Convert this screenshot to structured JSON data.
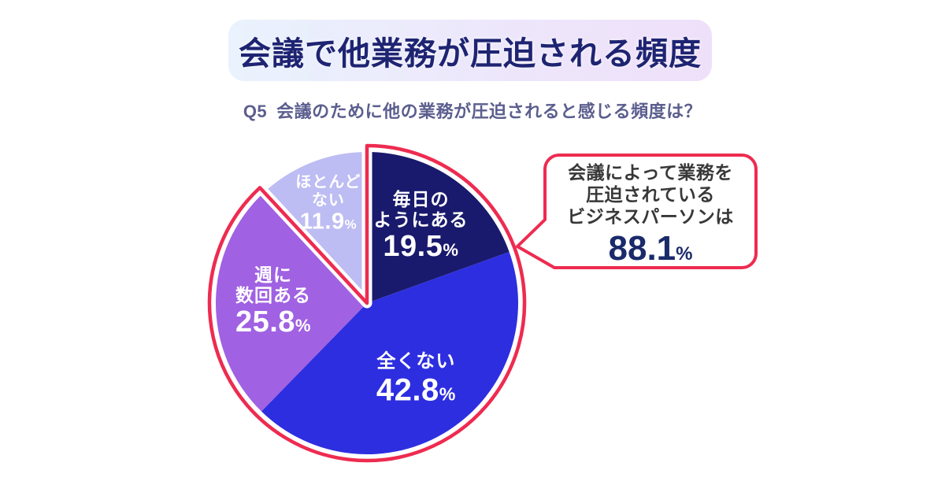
{
  "page": {
    "background": "#ffffff"
  },
  "header": {
    "title": "会議で他業務が圧迫される頻度",
    "title_color": "#1e2472",
    "banner_gradient_start": "#e9f2fd",
    "banner_gradient_end": "#efe0fa"
  },
  "question": {
    "prefix": "Q5",
    "text": "会議のために他の業務が圧迫されると感じる頻度は？",
    "color": "#5b5e8e"
  },
  "chart_data": {
    "type": "pie",
    "title": "会議で他業務が圧迫される頻度",
    "start_angle_deg": 0,
    "direction": "clockwise",
    "slices": [
      {
        "label": "毎日のようにある",
        "label_lines": [
          "毎日の",
          "ようにある"
        ],
        "value": 19.5,
        "unit": "%",
        "color": "#191a6d",
        "highlighted": true
      },
      {
        "label": "全くない",
        "label_lines": [
          "全くない"
        ],
        "value": 42.8,
        "unit": "%",
        "color": "#2d2ee0",
        "highlighted": true
      },
      {
        "label": "週に数回ある",
        "label_lines": [
          "週に",
          "数回ある"
        ],
        "value": 25.8,
        "unit": "%",
        "color": "#a061e2",
        "highlighted": true
      },
      {
        "label": "ほとんどない",
        "label_lines": [
          "ほとんど",
          "ない"
        ],
        "value": 11.9,
        "unit": "%",
        "color": "#bdbcf3",
        "highlighted": false
      }
    ],
    "highlight_outline_color": "#ee2b50",
    "highlight_total": 88.1,
    "legend": "none",
    "layout": {
      "center": [
        466,
        385
      ],
      "radius": 192,
      "outline_radius": 200,
      "label_radius_factors": [
        0.62,
        0.6,
        0.62,
        0.7
      ],
      "name_font_sizes": [
        23,
        24,
        23,
        20
      ],
      "value_font_sizes": [
        38,
        40,
        38,
        29
      ]
    }
  },
  "callout": {
    "lines": [
      "会議によって業務を",
      "圧迫されている",
      "ビジネスパーソンは"
    ],
    "value": "88.1",
    "unit": "%",
    "border_color": "#ee2b50",
    "text_color": "#383838",
    "value_color": "#1a2a6a"
  }
}
